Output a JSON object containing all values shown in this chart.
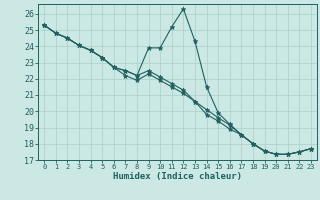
{
  "xlabel": "Humidex (Indice chaleur)",
  "background_color": "#cce8e4",
  "grid_color": "#aacfca",
  "line_color": "#206060",
  "xlim": [
    -0.5,
    23.5
  ],
  "ylim": [
    17,
    26.6
  ],
  "yticks": [
    17,
    18,
    19,
    20,
    21,
    22,
    23,
    24,
    25,
    26
  ],
  "xticks": [
    0,
    1,
    2,
    3,
    4,
    5,
    6,
    7,
    8,
    9,
    10,
    11,
    12,
    13,
    14,
    15,
    16,
    17,
    18,
    19,
    20,
    21,
    22,
    23
  ],
  "line1_x": [
    0,
    1,
    2,
    3,
    4,
    5,
    6,
    7,
    8,
    9,
    10,
    11,
    12,
    13,
    14,
    15,
    16,
    17,
    18,
    19,
    20,
    21,
    22,
    23
  ],
  "line1_y": [
    25.3,
    24.8,
    24.5,
    24.05,
    23.75,
    23.3,
    22.7,
    22.2,
    21.9,
    22.3,
    21.9,
    21.5,
    21.1,
    20.6,
    20.1,
    19.6,
    19.15,
    18.55,
    18.0,
    17.55,
    17.35,
    17.35,
    17.5,
    17.7
  ],
  "line2_x": [
    0,
    1,
    2,
    3,
    4,
    5,
    6,
    7,
    8,
    9,
    10,
    11,
    12,
    13,
    14,
    15,
    16,
    17,
    18,
    19,
    20,
    21,
    22,
    23
  ],
  "line2_y": [
    25.3,
    24.8,
    24.5,
    24.05,
    23.75,
    23.3,
    22.7,
    22.5,
    22.2,
    22.5,
    22.1,
    21.7,
    21.3,
    20.6,
    19.8,
    19.4,
    18.9,
    18.55,
    18.0,
    17.55,
    17.35,
    17.35,
    17.5,
    17.7
  ],
  "line3_x": [
    0,
    1,
    2,
    3,
    4,
    5,
    6,
    7,
    8,
    9,
    10,
    11,
    12,
    13,
    14,
    15,
    16,
    17,
    18,
    19,
    20,
    21,
    22,
    23
  ],
  "line3_y": [
    25.3,
    24.8,
    24.5,
    24.05,
    23.75,
    23.3,
    22.7,
    22.5,
    22.2,
    23.9,
    23.9,
    25.2,
    26.3,
    24.3,
    21.5,
    19.9,
    19.2,
    18.55,
    18.0,
    17.55,
    17.35,
    17.35,
    17.5,
    17.7
  ]
}
